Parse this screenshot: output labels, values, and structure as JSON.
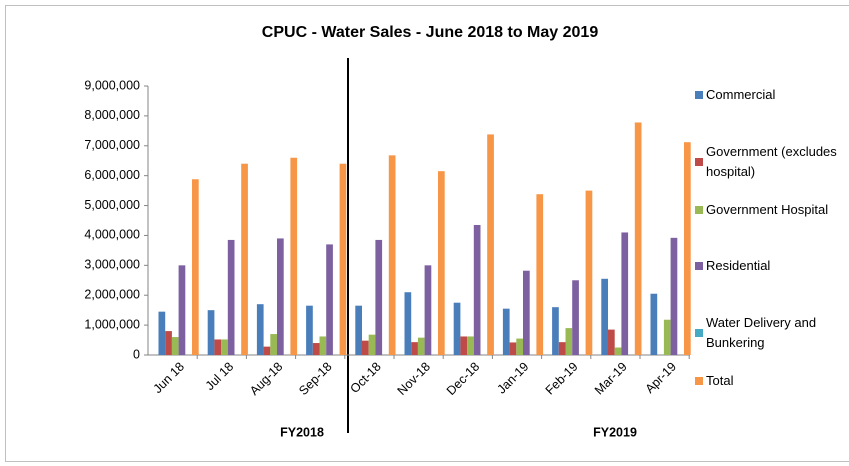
{
  "chart_data": {
    "type": "bar",
    "title": "CPUC - Water Sales - June  2018 to May  2019",
    "categories": [
      "Jun 18",
      "Jul 18",
      "Aug-18",
      "Sep-18",
      "Oct-18",
      "Nov-18",
      "Dec-18",
      "Jan-19",
      "Feb-19",
      "Mar-19",
      "Apr-19"
    ],
    "series": [
      {
        "name": "Commercial",
        "color": "#4a7ebb",
        "values": [
          1450000,
          1500000,
          1700000,
          1650000,
          1650000,
          2100000,
          1750000,
          1550000,
          1600000,
          2550000,
          2050000
        ]
      },
      {
        "name": "Government (excludes hospital)",
        "color": "#be4b48",
        "values": [
          800000,
          520000,
          280000,
          400000,
          480000,
          430000,
          620000,
          420000,
          430000,
          850000,
          0
        ]
      },
      {
        "name": "Government Hospital",
        "color": "#98b954",
        "values": [
          600000,
          520000,
          700000,
          620000,
          680000,
          580000,
          620000,
          550000,
          900000,
          250000,
          1180000
        ]
      },
      {
        "name": "Residential",
        "color": "#7d60a0",
        "values": [
          3000000,
          3850000,
          3900000,
          3700000,
          3850000,
          3000000,
          4350000,
          2820000,
          2500000,
          4100000,
          3920000
        ]
      },
      {
        "name": "Water Delivery and Bunkering",
        "color": "#46aac5",
        "values": [
          0,
          0,
          0,
          0,
          0,
          0,
          0,
          0,
          0,
          0,
          0
        ]
      },
      {
        "name": "Total",
        "color": "#f79646",
        "values": [
          5880000,
          6400000,
          6600000,
          6400000,
          6680000,
          6150000,
          7380000,
          5380000,
          5500000,
          7780000,
          7120000
        ]
      }
    ],
    "ylim": [
      0,
      9000000
    ],
    "yticks": [
      0,
      {
        "value": 1000000,
        "label": "1,000,000"
      },
      {
        "value": 2000000,
        "label": "2,000,000"
      },
      {
        "value": 3000000,
        "label": "3,000,000"
      },
      {
        "value": 4000000,
        "label": "4,000,000"
      },
      {
        "value": 5000000,
        "label": "5,000,000"
      },
      {
        "value": 6000000,
        "label": "6,000,000"
      },
      {
        "value": 7000000,
        "label": "7,000,000"
      },
      {
        "value": 8000000,
        "label": "8,000,000"
      },
      {
        "value": 9000000,
        "label": "9,000,000"
      }
    ],
    "grid": false,
    "legend": "right",
    "annotations": [
      "FY2018",
      "FY2019"
    ]
  }
}
